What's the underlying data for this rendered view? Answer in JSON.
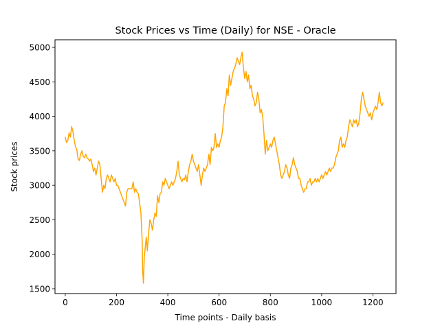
{
  "chart_data": {
    "type": "line",
    "title": "Stock Prices vs Time (Daily) for NSE - Oracle",
    "xlabel": "Time points - Daily basis",
    "ylabel": "Stock prices",
    "xlim": [
      -40,
      1290
    ],
    "ylim": [
      1430,
      5110
    ],
    "xticks": [
      0,
      200,
      400,
      600,
      800,
      1000,
      1200
    ],
    "yticks": [
      1500,
      2000,
      2500,
      3000,
      3500,
      4000,
      4500,
      5000
    ],
    "grid": false,
    "legend": "none",
    "series": [
      {
        "color": "#ffa500",
        "points": [
          [
            0,
            3700
          ],
          [
            5,
            3620
          ],
          [
            10,
            3650
          ],
          [
            15,
            3760
          ],
          [
            20,
            3700
          ],
          [
            25,
            3850
          ],
          [
            30,
            3780
          ],
          [
            35,
            3650
          ],
          [
            40,
            3560
          ],
          [
            45,
            3520
          ],
          [
            50,
            3380
          ],
          [
            55,
            3360
          ],
          [
            60,
            3450
          ],
          [
            65,
            3500
          ],
          [
            70,
            3420
          ],
          [
            75,
            3400
          ],
          [
            80,
            3450
          ],
          [
            85,
            3400
          ],
          [
            90,
            3380
          ],
          [
            95,
            3350
          ],
          [
            100,
            3380
          ],
          [
            105,
            3300
          ],
          [
            110,
            3200
          ],
          [
            115,
            3250
          ],
          [
            120,
            3150
          ],
          [
            125,
            3250
          ],
          [
            130,
            3350
          ],
          [
            135,
            3300
          ],
          [
            140,
            3100
          ],
          [
            145,
            2900
          ],
          [
            150,
            3000
          ],
          [
            155,
            2950
          ],
          [
            160,
            3100
          ],
          [
            165,
            3150
          ],
          [
            170,
            3100
          ],
          [
            175,
            3050
          ],
          [
            180,
            3150
          ],
          [
            185,
            3100
          ],
          [
            190,
            3050
          ],
          [
            195,
            3100
          ],
          [
            200,
            3000
          ],
          [
            205,
            3000
          ],
          [
            210,
            2950
          ],
          [
            215,
            2900
          ],
          [
            220,
            2850
          ],
          [
            225,
            2800
          ],
          [
            230,
            2750
          ],
          [
            235,
            2700
          ],
          [
            240,
            2900
          ],
          [
            245,
            2950
          ],
          [
            250,
            2950
          ],
          [
            255,
            2950
          ],
          [
            260,
            2950
          ],
          [
            265,
            3050
          ],
          [
            270,
            2900
          ],
          [
            275,
            2950
          ],
          [
            280,
            2900
          ],
          [
            285,
            2880
          ],
          [
            290,
            2750
          ],
          [
            295,
            2600
          ],
          [
            300,
            2200
          ],
          [
            302,
            1750
          ],
          [
            305,
            1580
          ],
          [
            308,
            1950
          ],
          [
            312,
            2100
          ],
          [
            316,
            2250
          ],
          [
            320,
            2050
          ],
          [
            325,
            2300
          ],
          [
            330,
            2500
          ],
          [
            335,
            2450
          ],
          [
            340,
            2350
          ],
          [
            345,
            2500
          ],
          [
            350,
            2600
          ],
          [
            355,
            2550
          ],
          [
            360,
            2850
          ],
          [
            365,
            2750
          ],
          [
            370,
            2880
          ],
          [
            375,
            2900
          ],
          [
            380,
            3050
          ],
          [
            385,
            3000
          ],
          [
            390,
            3100
          ],
          [
            395,
            3050
          ],
          [
            400,
            3000
          ],
          [
            405,
            2950
          ],
          [
            410,
            3000
          ],
          [
            415,
            3050
          ],
          [
            420,
            3000
          ],
          [
            425,
            3050
          ],
          [
            430,
            3100
          ],
          [
            435,
            3200
          ],
          [
            440,
            3350
          ],
          [
            445,
            3150
          ],
          [
            450,
            3100
          ],
          [
            455,
            3050
          ],
          [
            460,
            3100
          ],
          [
            465,
            3080
          ],
          [
            470,
            3150
          ],
          [
            475,
            3050
          ],
          [
            480,
            3200
          ],
          [
            485,
            3300
          ],
          [
            490,
            3350
          ],
          [
            495,
            3450
          ],
          [
            500,
            3350
          ],
          [
            505,
            3300
          ],
          [
            510,
            3250
          ],
          [
            515,
            3200
          ],
          [
            520,
            3300
          ],
          [
            525,
            3150
          ],
          [
            530,
            3000
          ],
          [
            535,
            3150
          ],
          [
            540,
            3250
          ],
          [
            545,
            3200
          ],
          [
            550,
            3250
          ],
          [
            555,
            3300
          ],
          [
            560,
            3450
          ],
          [
            565,
            3300
          ],
          [
            570,
            3550
          ],
          [
            575,
            3500
          ],
          [
            580,
            3550
          ],
          [
            585,
            3750
          ],
          [
            590,
            3550
          ],
          [
            595,
            3600
          ],
          [
            600,
            3550
          ],
          [
            605,
            3650
          ],
          [
            610,
            3700
          ],
          [
            615,
            3850
          ],
          [
            620,
            4150
          ],
          [
            625,
            4200
          ],
          [
            630,
            4400
          ],
          [
            635,
            4300
          ],
          [
            640,
            4600
          ],
          [
            645,
            4450
          ],
          [
            650,
            4550
          ],
          [
            655,
            4650
          ],
          [
            660,
            4700
          ],
          [
            665,
            4750
          ],
          [
            670,
            4850
          ],
          [
            675,
            4800
          ],
          [
            680,
            4750
          ],
          [
            685,
            4850
          ],
          [
            690,
            4930
          ],
          [
            695,
            4700
          ],
          [
            700,
            4550
          ],
          [
            705,
            4650
          ],
          [
            710,
            4500
          ],
          [
            715,
            4600
          ],
          [
            720,
            4400
          ],
          [
            725,
            4450
          ],
          [
            730,
            4300
          ],
          [
            735,
            4250
          ],
          [
            740,
            4150
          ],
          [
            745,
            4200
          ],
          [
            750,
            4350
          ],
          [
            755,
            4250
          ],
          [
            760,
            4050
          ],
          [
            765,
            4100
          ],
          [
            770,
            4000
          ],
          [
            775,
            3750
          ],
          [
            780,
            3450
          ],
          [
            785,
            3650
          ],
          [
            790,
            3500
          ],
          [
            795,
            3550
          ],
          [
            800,
            3600
          ],
          [
            805,
            3550
          ],
          [
            810,
            3650
          ],
          [
            815,
            3700
          ],
          [
            820,
            3600
          ],
          [
            825,
            3500
          ],
          [
            830,
            3400
          ],
          [
            835,
            3300
          ],
          [
            840,
            3150
          ],
          [
            845,
            3100
          ],
          [
            850,
            3150
          ],
          [
            855,
            3200
          ],
          [
            860,
            3300
          ],
          [
            865,
            3250
          ],
          [
            870,
            3150
          ],
          [
            875,
            3100
          ],
          [
            880,
            3250
          ],
          [
            885,
            3300
          ],
          [
            890,
            3400
          ],
          [
            895,
            3300
          ],
          [
            900,
            3250
          ],
          [
            905,
            3200
          ],
          [
            910,
            3100
          ],
          [
            915,
            3100
          ],
          [
            920,
            3000
          ],
          [
            925,
            2950
          ],
          [
            930,
            2900
          ],
          [
            935,
            2950
          ],
          [
            940,
            2950
          ],
          [
            945,
            3050
          ],
          [
            950,
            3050
          ],
          [
            955,
            3100
          ],
          [
            960,
            3000
          ],
          [
            965,
            3050
          ],
          [
            970,
            3050
          ],
          [
            975,
            3100
          ],
          [
            980,
            3050
          ],
          [
            985,
            3100
          ],
          [
            990,
            3050
          ],
          [
            995,
            3100
          ],
          [
            1000,
            3150
          ],
          [
            1005,
            3100
          ],
          [
            1010,
            3150
          ],
          [
            1015,
            3200
          ],
          [
            1020,
            3150
          ],
          [
            1025,
            3200
          ],
          [
            1030,
            3250
          ],
          [
            1035,
            3200
          ],
          [
            1040,
            3250
          ],
          [
            1045,
            3250
          ],
          [
            1050,
            3300
          ],
          [
            1055,
            3400
          ],
          [
            1060,
            3450
          ],
          [
            1065,
            3500
          ],
          [
            1070,
            3650
          ],
          [
            1075,
            3700
          ],
          [
            1080,
            3550
          ],
          [
            1085,
            3600
          ],
          [
            1090,
            3550
          ],
          [
            1095,
            3650
          ],
          [
            1100,
            3700
          ],
          [
            1105,
            3850
          ],
          [
            1110,
            3950
          ],
          [
            1115,
            3900
          ],
          [
            1120,
            3850
          ],
          [
            1125,
            3950
          ],
          [
            1130,
            3900
          ],
          [
            1135,
            3950
          ],
          [
            1140,
            3850
          ],
          [
            1145,
            3900
          ],
          [
            1150,
            4050
          ],
          [
            1155,
            4250
          ],
          [
            1160,
            4350
          ],
          [
            1165,
            4250
          ],
          [
            1170,
            4150
          ],
          [
            1175,
            4100
          ],
          [
            1180,
            4050
          ],
          [
            1185,
            4000
          ],
          [
            1190,
            4050
          ],
          [
            1195,
            3950
          ],
          [
            1200,
            4050
          ],
          [
            1205,
            4100
          ],
          [
            1210,
            4150
          ],
          [
            1215,
            4100
          ],
          [
            1220,
            4200
          ],
          [
            1225,
            4350
          ],
          [
            1230,
            4200
          ],
          [
            1235,
            4150
          ],
          [
            1240,
            4200
          ]
        ]
      }
    ]
  }
}
